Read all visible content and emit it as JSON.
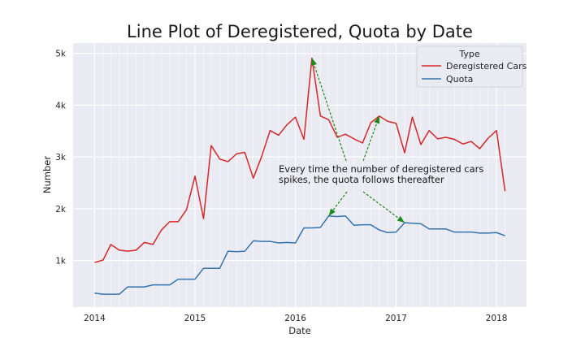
{
  "chart_data": {
    "type": "line",
    "title": "Line Plot of Deregistered, Quota by Date",
    "xlabel": "Date",
    "ylabel": "Number",
    "xlim": [
      "2013-10-15",
      "2018-04-20"
    ],
    "ylim": [
      100,
      5200
    ],
    "x_ticks": [
      {
        "date": "2014-01-01",
        "label": "2014"
      },
      {
        "date": "2015-01-01",
        "label": "2015"
      },
      {
        "date": "2016-01-01",
        "label": "2016"
      },
      {
        "date": "2017-01-01",
        "label": "2017"
      },
      {
        "date": "2018-01-01",
        "label": "2018"
      }
    ],
    "y_ticks": [
      {
        "value": 1000,
        "label": "1k"
      },
      {
        "value": 2000,
        "label": "2k"
      },
      {
        "value": 3000,
        "label": "3k"
      },
      {
        "value": 4000,
        "label": "4k"
      },
      {
        "value": 5000,
        "label": "5k"
      }
    ],
    "grid": true,
    "legend": {
      "title": "Type",
      "placement": "top-right"
    },
    "x": [
      "2014-01",
      "2014-02",
      "2014-03",
      "2014-04",
      "2014-05",
      "2014-06",
      "2014-07",
      "2014-08",
      "2014-09",
      "2014-10",
      "2014-11",
      "2014-12",
      "2015-01",
      "2015-02",
      "2015-03",
      "2015-04",
      "2015-05",
      "2015-06",
      "2015-07",
      "2015-08",
      "2015-09",
      "2015-10",
      "2015-11",
      "2015-12",
      "2016-01",
      "2016-02",
      "2016-03",
      "2016-04",
      "2016-05",
      "2016-06",
      "2016-07",
      "2016-08",
      "2016-09",
      "2016-10",
      "2016-11",
      "2016-12",
      "2017-01",
      "2017-02",
      "2017-03",
      "2017-04",
      "2017-05",
      "2017-06",
      "2017-07",
      "2017-08",
      "2017-09",
      "2017-10",
      "2017-11",
      "2017-12",
      "2018-01",
      "2018-02"
    ],
    "series": [
      {
        "name": "Deregistered Cars",
        "color": "#d62728",
        "values": [
          960,
          1010,
          1310,
          1200,
          1180,
          1200,
          1350,
          1310,
          1590,
          1750,
          1750,
          1980,
          2630,
          1810,
          3220,
          2960,
          2910,
          3060,
          3090,
          2590,
          3020,
          3510,
          3420,
          3620,
          3770,
          3340,
          4910,
          3790,
          3720,
          3380,
          3440,
          3350,
          3270,
          3660,
          3790,
          3690,
          3650,
          3080,
          3770,
          3240,
          3510,
          3350,
          3380,
          3340,
          3250,
          3300,
          3160,
          3360,
          3510,
          2340
        ],
        "markers": false
      },
      {
        "name": "Quota",
        "color": "#3274b0",
        "values": [
          370,
          350,
          350,
          350,
          490,
          490,
          490,
          530,
          530,
          530,
          640,
          640,
          640,
          850,
          850,
          850,
          1180,
          1170,
          1180,
          1380,
          1370,
          1370,
          1340,
          1350,
          1340,
          1630,
          1630,
          1640,
          1860,
          1850,
          1860,
          1680,
          1690,
          1690,
          1590,
          1540,
          1550,
          1730,
          1720,
          1710,
          1610,
          1610,
          1610,
          1550,
          1550,
          1550,
          1530,
          1530,
          1540,
          1480
        ],
        "markers": false
      }
    ],
    "annotation": {
      "text_lines": [
        "Every time the number of deregistered cars",
        "spikes, the quota follows thereafter"
      ],
      "arrow_color": "#1a8a1a"
    }
  }
}
